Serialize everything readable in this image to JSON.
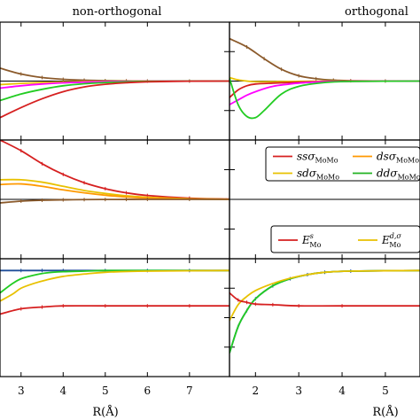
{
  "chart_data": {
    "type": "line",
    "columns": [
      {
        "title": "non-orthogonal",
        "xlabel": "R(Å)",
        "xlim": [
          2.5,
          7.95
        ],
        "xticks": [
          3,
          4,
          5,
          6,
          7
        ]
      },
      {
        "title": "orthogonal",
        "xlabel": "R(Å)",
        "xlim": [
          1.4,
          5.8
        ],
        "xticks": [
          2,
          3,
          4,
          5
        ]
      }
    ],
    "rows": [
      {
        "ylim": [
          -1.0,
          1.0
        ]
      },
      {
        "ylim": [
          -1.0,
          1.0
        ]
      },
      {
        "ylim": [
          -1.0,
          1.0
        ]
      }
    ],
    "legends": [
      {
        "row": 1,
        "col": 1,
        "entries": [
          {
            "label": "ssσ_MoMo",
            "main": "ssσ",
            "sub": "MoMo",
            "sup": "",
            "color": "#d62020"
          },
          {
            "label": "dsσ_MoMo",
            "main": "dsσ",
            "sub": "MoMo",
            "sup": "",
            "color": "#ff9900"
          },
          {
            "label": "sdσ_MoMo",
            "main": "sdσ",
            "sub": "MoMo",
            "sup": "",
            "color": "#e8c100"
          },
          {
            "label": "ddσ_MoMo",
            "main": "ddσ",
            "sub": "MoMo",
            "sup": "",
            "color": "#22b222"
          }
        ]
      },
      {
        "row": 2,
        "col": 1,
        "entries": [
          {
            "label": "E^s_Mo",
            "main": "E",
            "sub": "Mo",
            "sup": "s",
            "color": "#d62020"
          },
          {
            "label": "E^{d,σ}_Mo",
            "main": "E",
            "sub": "Mo",
            "sup": "d,σ",
            "color": "#e8c100"
          }
        ]
      }
    ],
    "panels": [
      {
        "row": 0,
        "col": 0,
        "series": [
          {
            "color": "#8b5a2b",
            "marker": true,
            "x": [
              2.5,
              3.0,
              3.5,
              4.0,
              4.5,
              5.0,
              5.5,
              6.0,
              7.0,
              7.95
            ],
            "y": [
              0.22,
              0.12,
              0.06,
              0.03,
              0.015,
              0.007,
              0.003,
              0.001,
              0.0,
              0.0
            ]
          },
          {
            "color": "#e8c100",
            "marker": false,
            "x": [
              2.5,
              3.0,
              3.5,
              4.0,
              4.5,
              5.0,
              5.5,
              6.0,
              7.0,
              7.95
            ],
            "y": [
              -0.06,
              -0.04,
              -0.025,
              -0.015,
              -0.008,
              -0.004,
              -0.002,
              -0.001,
              0.0,
              0.0
            ]
          },
          {
            "color": "#ff00ff",
            "marker": false,
            "x": [
              2.5,
              3.0,
              3.5,
              4.0,
              4.5,
              5.0,
              5.5,
              6.0,
              7.0,
              7.95
            ],
            "y": [
              -0.12,
              -0.08,
              -0.05,
              -0.03,
              -0.018,
              -0.01,
              -0.005,
              -0.002,
              0.0,
              0.0
            ]
          },
          {
            "color": "#22cc22",
            "marker": false,
            "x": [
              2.5,
              3.0,
              3.5,
              4.0,
              4.5,
              5.0,
              5.5,
              6.0,
              7.0,
              7.95
            ],
            "y": [
              -0.33,
              -0.22,
              -0.14,
              -0.08,
              -0.045,
              -0.025,
              -0.012,
              -0.005,
              -0.001,
              0.0
            ]
          },
          {
            "color": "#d62020",
            "marker": false,
            "x": [
              2.5,
              3.0,
              3.5,
              4.0,
              4.5,
              5.0,
              5.5,
              6.0,
              7.0,
              7.95
            ],
            "y": [
              -0.62,
              -0.45,
              -0.3,
              -0.18,
              -0.1,
              -0.055,
              -0.028,
              -0.012,
              -0.002,
              0.0
            ]
          }
        ]
      },
      {
        "row": 0,
        "col": 1,
        "series": [
          {
            "color": "#8b5a2b",
            "marker": true,
            "x": [
              1.4,
              1.8,
              2.2,
              2.6,
              3.0,
              3.4,
              3.8,
              4.2,
              5.0,
              5.8
            ],
            "y": [
              0.72,
              0.58,
              0.38,
              0.2,
              0.09,
              0.04,
              0.016,
              0.006,
              0.001,
              0.0
            ]
          },
          {
            "color": "#e8c100",
            "marker": false,
            "x": [
              1.4,
              1.6,
              1.8,
              2.0,
              2.4,
              3.0,
              5.8
            ],
            "y": [
              0.06,
              0.02,
              0.0,
              -0.01,
              -0.01,
              -0.004,
              0.0
            ]
          },
          {
            "color": "#d62020",
            "marker": false,
            "x": [
              1.4,
              1.6,
              1.8,
              2.0,
              2.4,
              3.0,
              3.6,
              4.2,
              5.8
            ],
            "y": [
              -0.28,
              -0.15,
              -0.08,
              -0.05,
              -0.035,
              -0.02,
              -0.008,
              -0.003,
              0.0
            ]
          },
          {
            "color": "#ff00ff",
            "marker": false,
            "x": [
              1.4,
              1.6,
              1.8,
              2.0,
              2.4,
              3.0,
              3.6,
              4.2,
              5.8
            ],
            "y": [
              -0.4,
              -0.32,
              -0.24,
              -0.18,
              -0.09,
              -0.035,
              -0.012,
              -0.004,
              0.0
            ]
          },
          {
            "color": "#22cc22",
            "marker": false,
            "x": [
              1.4,
              1.6,
              1.8,
              2.0,
              2.2,
              2.6,
              3.0,
              3.6,
              4.2,
              5.8
            ],
            "y": [
              0.05,
              -0.4,
              -0.6,
              -0.62,
              -0.5,
              -0.22,
              -0.09,
              -0.025,
              -0.006,
              0.0
            ]
          }
        ]
      },
      {
        "row": 1,
        "col": 0,
        "series": [
          {
            "color": "#d62020",
            "marker": true,
            "x": [
              2.5,
              3.0,
              3.5,
              4.0,
              4.5,
              5.0,
              5.5,
              6.0,
              7.0,
              7.95
            ],
            "y": [
              1.0,
              0.82,
              0.6,
              0.42,
              0.28,
              0.18,
              0.11,
              0.065,
              0.02,
              0.005
            ]
          },
          {
            "color": "#e8c100",
            "marker": false,
            "x": [
              2.5,
              3.0,
              3.5,
              4.0,
              4.5,
              5.0,
              5.5,
              6.0,
              7.0,
              7.95
            ],
            "y": [
              0.33,
              0.33,
              0.29,
              0.22,
              0.15,
              0.1,
              0.06,
              0.035,
              0.01,
              0.002
            ]
          },
          {
            "color": "#ff9900",
            "marker": false,
            "x": [
              2.5,
              3.0,
              3.5,
              4.0,
              4.5,
              5.0,
              5.5,
              6.0,
              7.0,
              7.95
            ],
            "y": [
              0.25,
              0.26,
              0.22,
              0.16,
              0.11,
              0.07,
              0.04,
              0.022,
              0.006,
              0.001
            ]
          },
          {
            "color": "#8b5a2b",
            "marker": true,
            "x": [
              2.5,
              3.0,
              3.5,
              4.0,
              4.5,
              5.0,
              5.5,
              6.0,
              7.0,
              7.95
            ],
            "y": [
              -0.06,
              -0.03,
              -0.015,
              -0.008,
              -0.004,
              -0.002,
              -0.001,
              0.0,
              0.0,
              0.0
            ]
          }
        ]
      },
      {
        "row": 2,
        "col": 0,
        "series": [
          {
            "color": "#1f4e99",
            "marker": true,
            "x": [
              2.5,
              3.0,
              3.5,
              4.0,
              5.0,
              6.0,
              7.0,
              7.95
            ],
            "y": [
              0.8,
              0.8,
              0.8,
              0.8,
              0.8,
              0.8,
              0.8,
              0.8
            ]
          },
          {
            "color": "#22cc22",
            "marker": false,
            "x": [
              2.5,
              2.8,
              3.0,
              3.3,
              3.6,
              4.0,
              4.5,
              5.0,
              6.0,
              7.95
            ],
            "y": [
              0.42,
              0.58,
              0.66,
              0.72,
              0.76,
              0.78,
              0.79,
              0.8,
              0.8,
              0.8
            ]
          },
          {
            "color": "#e8c100",
            "marker": false,
            "x": [
              2.5,
              2.8,
              3.0,
              3.3,
              3.6,
              4.0,
              4.5,
              5.0,
              6.0,
              7.95
            ],
            "y": [
              0.28,
              0.4,
              0.5,
              0.58,
              0.64,
              0.7,
              0.74,
              0.77,
              0.79,
              0.8
            ]
          },
          {
            "color": "#d62020",
            "marker": true,
            "x": [
              2.5,
              3.0,
              3.5,
              4.0,
              5.0,
              6.0,
              7.0,
              7.95
            ],
            "y": [
              0.06,
              0.15,
              0.18,
              0.2,
              0.2,
              0.2,
              0.2,
              0.2
            ]
          }
        ]
      },
      {
        "row": 2,
        "col": 1,
        "series": [
          {
            "color": "#1f4e99",
            "marker": true,
            "x": [
              1.4,
              1.6,
              1.8,
              2.0,
              2.4,
              2.8,
              3.2,
              3.6,
              4.2,
              5.8
            ],
            "y": [
              -0.6,
              -0.15,
              0.12,
              0.32,
              0.54,
              0.66,
              0.73,
              0.77,
              0.79,
              0.8
            ]
          },
          {
            "color": "#22cc22",
            "marker": false,
            "x": [
              1.4,
              1.6,
              1.8,
              2.0,
              2.4,
              2.8,
              3.2,
              3.6,
              4.2,
              5.8
            ],
            "y": [
              -0.6,
              -0.15,
              0.12,
              0.32,
              0.54,
              0.66,
              0.73,
              0.77,
              0.79,
              0.8
            ]
          },
          {
            "color": "#e8c100",
            "marker": false,
            "x": [
              1.4,
              1.6,
              1.8,
              2.0,
              2.4,
              2.8,
              3.2,
              3.6,
              4.2,
              5.8
            ],
            "y": [
              -0.05,
              0.22,
              0.36,
              0.46,
              0.58,
              0.67,
              0.73,
              0.77,
              0.79,
              0.8
            ]
          },
          {
            "color": "#d62020",
            "marker": true,
            "x": [
              1.4,
              1.6,
              1.8,
              2.0,
              2.4,
              3.0,
              4.0,
              5.8
            ],
            "y": [
              0.42,
              0.3,
              0.26,
              0.23,
              0.22,
              0.2,
              0.2,
              0.2
            ]
          }
        ]
      }
    ]
  }
}
